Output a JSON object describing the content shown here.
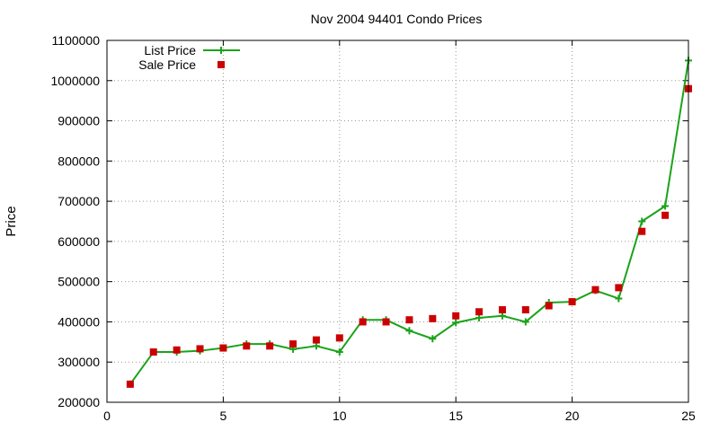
{
  "chart_data": {
    "type": "line",
    "title": "Nov 2004 94401 Condo Prices",
    "xlabel": "",
    "ylabel": "Price",
    "xlim": [
      0,
      25
    ],
    "ylim": [
      200000,
      1100000
    ],
    "x_ticks": [
      0,
      5,
      10,
      15,
      20,
      25
    ],
    "y_ticks": [
      200000,
      300000,
      400000,
      500000,
      600000,
      700000,
      800000,
      900000,
      1000000,
      1100000
    ],
    "grid": true,
    "legend_position": "top-left",
    "series": [
      {
        "name": "List Price",
        "style": "line-with-plus-markers",
        "color": "#1aa31a",
        "x": [
          1,
          2,
          3,
          4,
          5,
          6,
          7,
          8,
          9,
          10,
          11,
          12,
          13,
          14,
          15,
          16,
          17,
          18,
          19,
          20,
          21,
          22,
          23,
          24,
          25
        ],
        "y": [
          245000,
          325000,
          325000,
          328000,
          335000,
          345000,
          345000,
          332000,
          340000,
          325000,
          405000,
          405000,
          378000,
          358000,
          398000,
          410000,
          415000,
          400000,
          448000,
          450000,
          478000,
          458000,
          650000,
          688000,
          1050000
        ]
      },
      {
        "name": "Sale Price",
        "style": "square-markers",
        "color": "#cc0000",
        "x": [
          1,
          2,
          3,
          4,
          5,
          6,
          7,
          8,
          9,
          10,
          11,
          12,
          13,
          14,
          15,
          16,
          17,
          18,
          19,
          20,
          21,
          22,
          23,
          24,
          25
        ],
        "y": [
          245000,
          325000,
          330000,
          333000,
          335000,
          340000,
          340000,
          345000,
          355000,
          360000,
          400000,
          400000,
          405000,
          408000,
          415000,
          425000,
          430000,
          430000,
          440000,
          450000,
          480000,
          485000,
          625000,
          665000,
          980000
        ]
      }
    ]
  }
}
